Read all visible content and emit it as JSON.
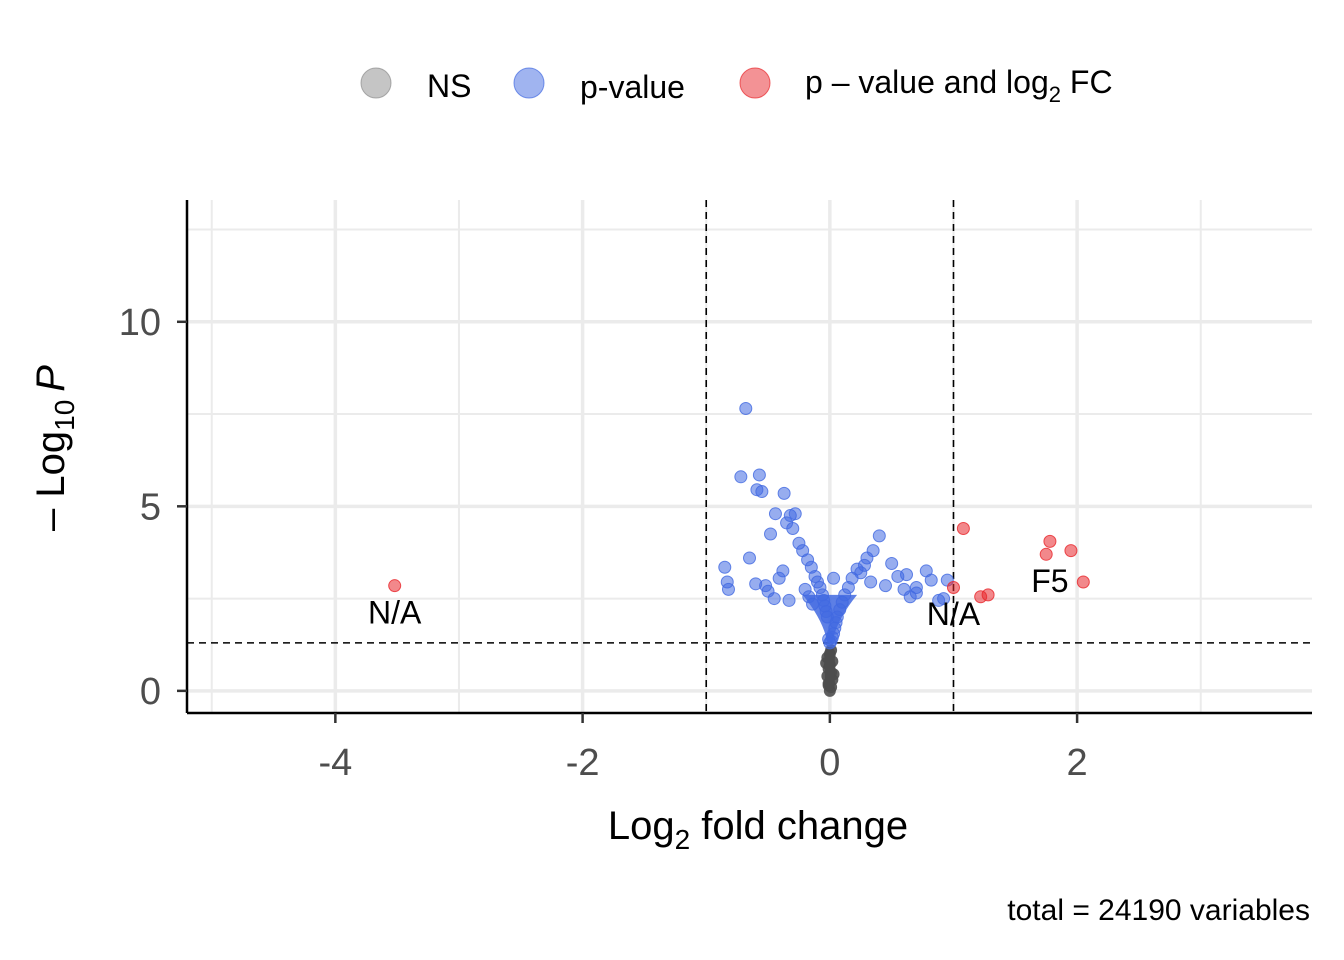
{
  "chart_data": {
    "type": "scatter",
    "title": "",
    "xlabel_main": "Log",
    "xlabel_sub": "2",
    "xlabel_rest": " fold change",
    "ylabel_prefix": "– Log",
    "ylabel_sub": "10",
    "ylabel_var": "P",
    "caption": "total = 24190 variables",
    "xlim": [
      -5.2,
      3.9
    ],
    "ylim": [
      -0.6,
      13.3
    ],
    "x_ticks": [
      -4,
      -2,
      0,
      2
    ],
    "x_tick_labels": [
      "-4",
      "-2",
      "0",
      "2"
    ],
    "y_ticks": [
      0,
      5,
      10
    ],
    "y_tick_labels": [
      "0",
      "5",
      "10"
    ],
    "grid": true,
    "legend_position": "top",
    "fc_cutoff": 1,
    "p_cutoff_neglog10": 1.3,
    "colors": {
      "NS": "#8c8c8c",
      "pvalue": "#4169e1",
      "both": "#e8262b",
      "ns_core": "#4d4d4d",
      "axis": "#000000",
      "grid": "#ebebeb",
      "tick_text": "#4d4d4d"
    },
    "legend": {
      "ns": "NS",
      "pvalue": "p-value",
      "both_main": "p – value and log",
      "both_sub": "2",
      "both_end": " FC"
    },
    "series": [
      {
        "name": "NS",
        "x": [
          0.0,
          0.01,
          -0.01,
          0.02,
          -0.02,
          0.01,
          -0.01,
          0.0,
          0.02,
          -0.02,
          0.0,
          0.01,
          -0.01,
          0.03,
          -0.03
        ],
        "y": [
          0.0,
          0.1,
          0.2,
          0.3,
          0.4,
          0.5,
          0.6,
          0.7,
          0.8,
          0.9,
          1.0,
          1.1,
          0.15,
          0.45,
          0.75
        ]
      },
      {
        "name": "p-value",
        "x": [
          -0.68,
          -0.72,
          -0.57,
          -0.59,
          -0.55,
          -0.37,
          -0.44,
          -0.32,
          -0.28,
          -0.35,
          -0.3,
          -0.48,
          -0.25,
          -0.22,
          -0.65,
          -0.85,
          -0.83,
          -0.82,
          -0.52,
          -0.41,
          -0.38,
          -0.18,
          -0.15,
          -0.12,
          -0.1,
          -0.08,
          -0.06,
          -0.05,
          -0.04,
          -0.03,
          -0.02,
          -0.2,
          -0.17,
          -0.14,
          -0.6,
          -0.5,
          -0.45,
          -0.33,
          0.4,
          0.35,
          0.3,
          0.28,
          0.25,
          0.33,
          0.45,
          0.55,
          0.6,
          0.65,
          0.7,
          0.78,
          0.82,
          0.92,
          0.95,
          0.22,
          0.18,
          0.15,
          0.12,
          0.1,
          0.08,
          0.06,
          0.05,
          0.04,
          0.03,
          0.02,
          0.5,
          0.62,
          0.7,
          0.88,
          0.03,
          0.01,
          -0.01,
          0.0
        ],
        "y": [
          7.65,
          5.8,
          5.85,
          5.45,
          5.4,
          5.35,
          4.8,
          4.75,
          4.8,
          4.55,
          4.4,
          4.25,
          4.0,
          3.8,
          3.6,
          3.35,
          2.95,
          2.75,
          2.85,
          3.05,
          3.25,
          3.55,
          3.35,
          3.1,
          2.95,
          2.8,
          2.6,
          2.45,
          2.3,
          2.15,
          2.0,
          2.75,
          2.55,
          2.35,
          2.9,
          2.7,
          2.5,
          2.45,
          4.2,
          3.8,
          3.6,
          3.4,
          3.2,
          2.95,
          2.85,
          3.1,
          2.75,
          2.55,
          2.8,
          3.25,
          3.0,
          2.5,
          3.0,
          3.3,
          3.05,
          2.8,
          2.6,
          2.4,
          2.2,
          2.0,
          1.85,
          1.7,
          1.55,
          1.45,
          3.45,
          3.15,
          2.65,
          2.45,
          3.05,
          1.35,
          1.4,
          1.3
        ]
      },
      {
        "name": "p – value and log2 FC",
        "x": [
          -3.52,
          1.08,
          1.78,
          1.75,
          1.95,
          2.05,
          1.0,
          1.22,
          1.28
        ],
        "y": [
          2.85,
          4.4,
          4.05,
          3.7,
          3.8,
          2.95,
          2.8,
          2.55,
          2.6
        ]
      }
    ],
    "annotations": [
      {
        "text": "N/A",
        "x": -3.52,
        "y": 2.1
      },
      {
        "text": "N/A",
        "x": 1.0,
        "y": 2.05
      },
      {
        "text": "F5",
        "x": 1.78,
        "y": 2.95
      }
    ]
  }
}
